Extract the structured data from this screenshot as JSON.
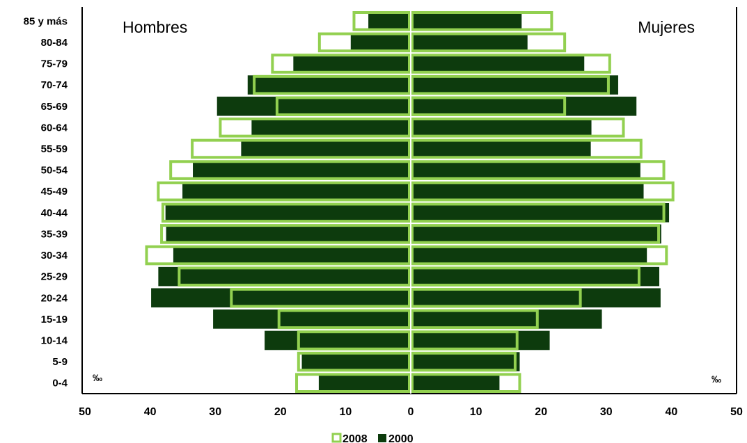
{
  "chart_data": {
    "type": "bar",
    "orientation": "horizontal",
    "layout": "population-pyramid",
    "unit": "‰",
    "xlim": [
      -50,
      50
    ],
    "x_ticks": [
      50,
      40,
      30,
      20,
      10,
      0,
      10,
      20,
      30,
      40,
      50
    ],
    "grid": false,
    "legend_position": "bottom",
    "side_labels": {
      "left": "Hombres",
      "right": "Mujeres"
    },
    "categories": [
      "0-4",
      "5-9",
      "10-14",
      "15-19",
      "20-24",
      "25-29",
      "30-34",
      "35-39",
      "40-44",
      "45-49",
      "50-54",
      "55-59",
      "60-64",
      "65-69",
      "70-74",
      "75-79",
      "80-84",
      "85 y más"
    ],
    "series": [
      {
        "name": "2008",
        "style": "outline",
        "color": "#92d050",
        "hombres": [
          17.5,
          17.2,
          17.2,
          20.2,
          27.5,
          35.5,
          40.5,
          38.2,
          38.0,
          38.7,
          36.8,
          33.5,
          29.2,
          20.5,
          24.0,
          21.2,
          14.0,
          8.7
        ],
        "mujeres": [
          16.7,
          16.0,
          16.3,
          19.4,
          26.0,
          35.0,
          39.2,
          38.0,
          38.8,
          40.2,
          38.8,
          35.3,
          32.6,
          23.6,
          30.3,
          30.5,
          23.6,
          21.6
        ]
      },
      {
        "name": "2000",
        "style": "filled",
        "color": "#0d3b0d",
        "hombres": [
          14.1,
          16.7,
          22.4,
          30.3,
          39.8,
          38.7,
          36.4,
          37.5,
          37.6,
          35.0,
          33.4,
          26.0,
          24.4,
          29.7,
          25.0,
          18.0,
          9.2,
          6.5
        ],
        "mujeres": [
          13.6,
          16.7,
          21.3,
          29.3,
          38.3,
          38.1,
          36.2,
          38.4,
          39.6,
          35.7,
          35.2,
          27.6,
          27.7,
          34.6,
          31.8,
          26.6,
          17.9,
          17.0
        ]
      }
    ]
  }
}
